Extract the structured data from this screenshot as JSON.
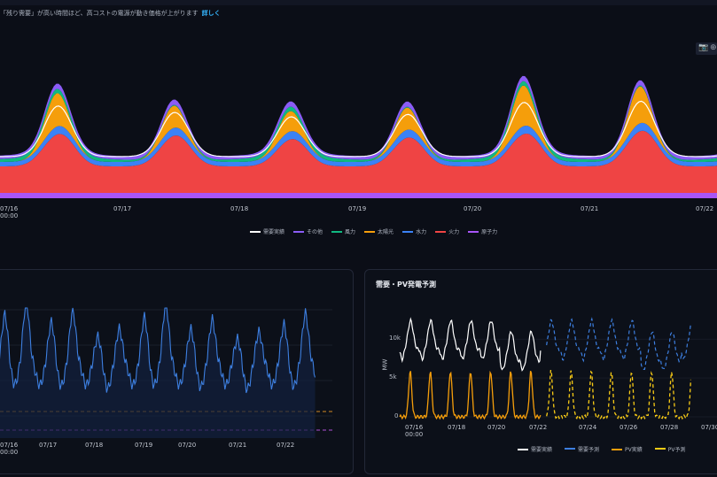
{
  "notice": {
    "text": "「残り需要」が高い時間ほど、高コストの電源が動き価格が上がります",
    "link": "詳しく"
  },
  "colors": {
    "bg": "#0b0e17",
    "nuclear": "#a855f7",
    "thermal": "#ef4444",
    "hydro": "#3b82f6",
    "solar": "#f59e0b",
    "wind": "#10b981",
    "other": "#8b5cf6",
    "demand_line": "#ffffff",
    "residual_line": "#3d7fe0",
    "forecast_dash": "#3d7fe0",
    "pv_actual": "#f59e0b",
    "pv_forecast": "#facc15",
    "ref_orange": "#d38a22",
    "ref_purple": "#b14fd6"
  },
  "toolbar": {
    "camera_icon": "camera-icon",
    "zoom_icon": "zoom-icon"
  },
  "chart_data": [
    {
      "type": "area",
      "title": "",
      "x_ticks": [
        "07/16\n00:00",
        "07/17",
        "07/18",
        "07/19",
        "07/20",
        "07/21",
        "07/22"
      ],
      "stack_order": [
        "原子力",
        "火力",
        "水力",
        "太陽光",
        "風力",
        "その他"
      ],
      "days": 7,
      "hours_per_day": 24,
      "nuclear_gw_level": 0.05,
      "legend": [
        "需要実績",
        "その他",
        "風力",
        "太陽光",
        "水力",
        "火力",
        "原子力"
      ],
      "legend_placement": "bottom",
      "grid": false
    },
    {
      "type": "line",
      "title": "",
      "x_ticks": [
        "07/16\n00:00",
        "07/17",
        "07/18",
        "07/19",
        "07/20",
        "07/21",
        "07/22"
      ],
      "reference_lines": [
        "orange-dashed",
        "purple-dashed"
      ],
      "fill": "area-under-line",
      "grid": true
    },
    {
      "type": "line",
      "title": "需要・PV発電予測",
      "ylabel": "MW",
      "y_ticks": [
        "0",
        "5k",
        "10k"
      ],
      "ylim": [
        0,
        13000
      ],
      "x_ticks": [
        "07/16\n00:00",
        "07/18",
        "07/20",
        "07/22",
        "07/24",
        "07/26",
        "07/28",
        "07/30"
      ],
      "series": [
        {
          "name": "需要実績",
          "style": "solid",
          "range": "07/16-07/23"
        },
        {
          "name": "需要予測",
          "style": "dashed",
          "range": "07/23-07/30"
        },
        {
          "name": "PV実績",
          "style": "solid",
          "range": "07/16-07/23"
        },
        {
          "name": "PV予測",
          "style": "dashed",
          "range": "07/23-07/30"
        }
      ],
      "legend_placement": "bottom"
    }
  ]
}
